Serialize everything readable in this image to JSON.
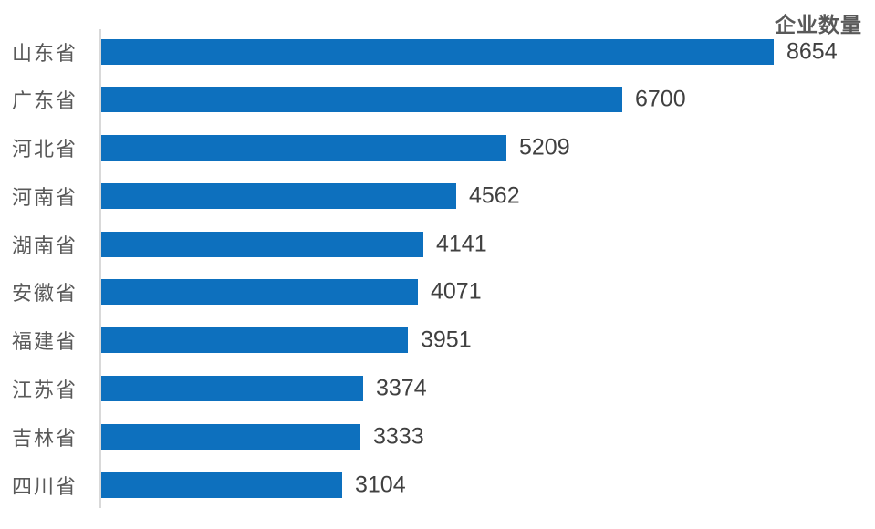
{
  "chart_data": {
    "type": "bar",
    "orientation": "horizontal",
    "title": "企业数量",
    "categories": [
      "山东省",
      "广东省",
      "河北省",
      "河南省",
      "湖南省",
      "安徽省",
      "福建省",
      "江苏省",
      "吉林省",
      "四川省"
    ],
    "values": [
      8654,
      6700,
      5209,
      4562,
      4141,
      4071,
      3951,
      3374,
      3333,
      3104
    ],
    "value_labels_shown": true,
    "xlabel": "",
    "ylabel": "",
    "value_axis_ticks_shown": false,
    "grid": false,
    "legend": "none",
    "bar_color": "#0d70be",
    "category_label_color": "#595959",
    "value_label_color": "#404040",
    "title_color": "#595959",
    "axis_line_color": "#d9d9d9"
  }
}
